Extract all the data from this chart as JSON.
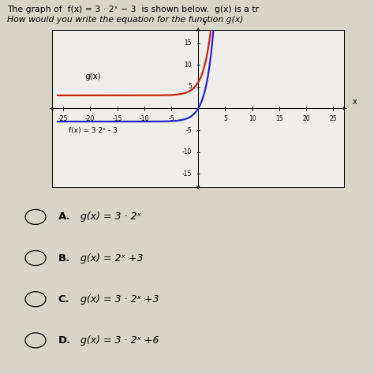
{
  "bg_color": "#d8d4c8",
  "graph_bg": "#f0eeea",
  "xlim": [
    -27,
    27
  ],
  "ylim": [
    -18,
    18
  ],
  "xticks": [
    -25,
    -20,
    -15,
    -10,
    -5,
    5,
    10,
    15,
    20,
    25
  ],
  "yticks": [
    -15,
    -10,
    -5,
    5,
    10,
    15
  ],
  "fx_color": "#2222cc",
  "gx_color": "#cc2211",
  "fx_label": "f(x) = 3·2ˣ - 3",
  "gx_label": "g(x)",
  "title_line1": "The graph of  f(x) = 3 · 2ˣ − 3  is shown below.  g(x) is a tr",
  "title_line2": "How would you write the equation for the function g(x)",
  "choices": [
    {
      "letter": "A.",
      "text": "g(x) = 3 · 2ˣ"
    },
    {
      "letter": "B.",
      "text": "g(x) = 2ˣ +3"
    },
    {
      "letter": "C.",
      "text": "g(x) = 3 · 2ˣ +3"
    },
    {
      "letter": "D.",
      "text": "g(x) = 3 · 2ˣ +6"
    }
  ]
}
